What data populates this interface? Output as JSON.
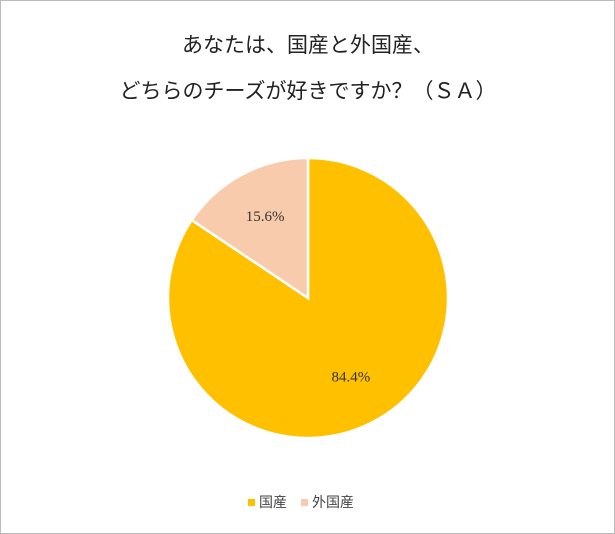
{
  "chart_data": {
    "type": "pie",
    "title": [
      "あなたは、国産と外国産、",
      "どちらのチーズが好きですか？（ＳＡ）"
    ],
    "categories": [
      "国産",
      "外国産"
    ],
    "values": [
      84.4,
      15.6
    ],
    "value_labels": [
      "84.4%",
      "15.6%"
    ],
    "colors": [
      "#FFC000",
      "#F8CBAD"
    ]
  }
}
